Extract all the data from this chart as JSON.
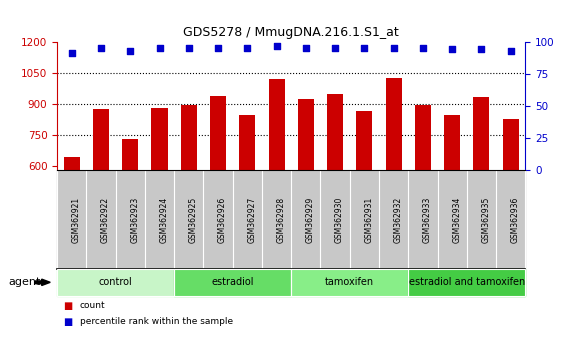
{
  "title": "GDS5278 / MmugDNA.216.1.S1_at",
  "samples": [
    "GSM362921",
    "GSM362922",
    "GSM362923",
    "GSM362924",
    "GSM362925",
    "GSM362926",
    "GSM362927",
    "GSM362928",
    "GSM362929",
    "GSM362930",
    "GSM362931",
    "GSM362932",
    "GSM362933",
    "GSM362934",
    "GSM362935",
    "GSM362936"
  ],
  "counts": [
    645,
    875,
    728,
    882,
    898,
    940,
    845,
    1020,
    925,
    950,
    868,
    1025,
    898,
    848,
    935,
    828
  ],
  "percentile": [
    92,
    96,
    93,
    96,
    96,
    96,
    96,
    97,
    96,
    96,
    96,
    96,
    96,
    95,
    95,
    93
  ],
  "groups": [
    {
      "label": "control",
      "start": 0,
      "end": 4,
      "color": "#c8f5c8"
    },
    {
      "label": "estradiol",
      "start": 4,
      "end": 8,
      "color": "#66dd66"
    },
    {
      "label": "tamoxifen",
      "start": 8,
      "end": 12,
      "color": "#88ee88"
    },
    {
      "label": "estradiol and tamoxifen",
      "start": 12,
      "end": 16,
      "color": "#44cc44"
    }
  ],
  "bar_color": "#cc0000",
  "dot_color": "#0000cc",
  "ylim_left": [
    580,
    1200
  ],
  "ylim_right": [
    0,
    100
  ],
  "yticks_left": [
    600,
    750,
    900,
    1050,
    1200
  ],
  "yticks_right": [
    0,
    25,
    50,
    75,
    100
  ],
  "grid_lines": [
    750,
    900,
    1050
  ],
  "xlabel": "agent",
  "legend_count": "count",
  "legend_pct": "percentile rank within the sample",
  "bg_color": "#ffffff",
  "tick_area_color": "#c8c8c8",
  "bar_width": 0.55
}
